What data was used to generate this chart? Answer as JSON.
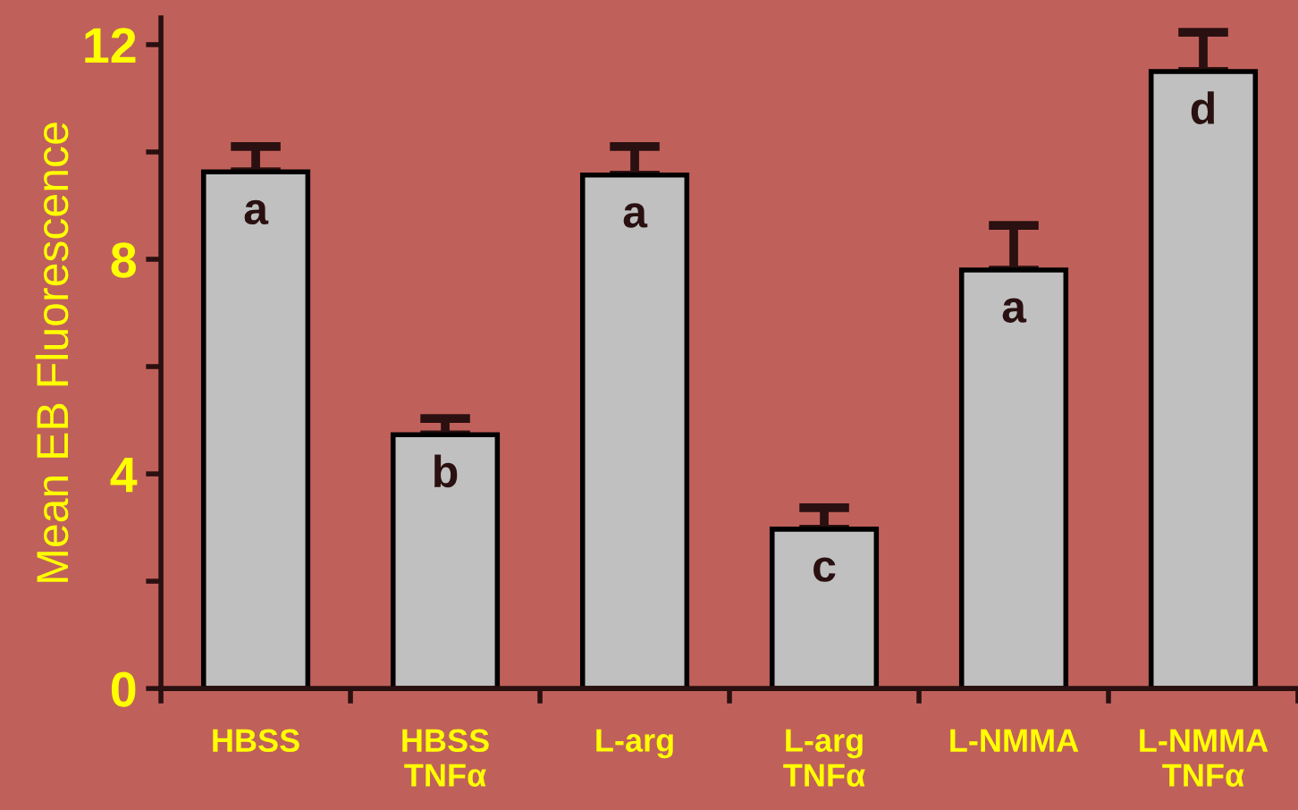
{
  "chart_data": {
    "type": "bar",
    "ylabel": "Mean EB Fluorescence",
    "categories": [
      "HBSS",
      "HBSS\nTNFα",
      "L-arg",
      "L-arg\nTNFα",
      "L-NMMA",
      "L-NMMA\nTNFα"
    ],
    "values": [
      9.63,
      4.73,
      9.57,
      2.97,
      7.8,
      11.5
    ],
    "errors": [
      [
        9.63,
        10.1
      ],
      [
        4.73,
        5.03
      ],
      [
        9.57,
        10.1
      ],
      [
        2.97,
        3.37
      ],
      [
        7.8,
        8.63
      ],
      [
        11.5,
        12.23
      ]
    ],
    "color": "#c0c0c0",
    "ylim": [
      0,
      12.5
    ],
    "yticks": [
      0,
      {
        "value": 2,
        "label": null
      },
      4,
      {
        "value": 6,
        "label": null
      },
      8,
      {
        "value": 10,
        "label": null
      },
      12
    ],
    "value_labels": [
      "a",
      "b",
      "a",
      "c",
      "a",
      "d"
    ],
    "grid": false,
    "legend": false
  }
}
